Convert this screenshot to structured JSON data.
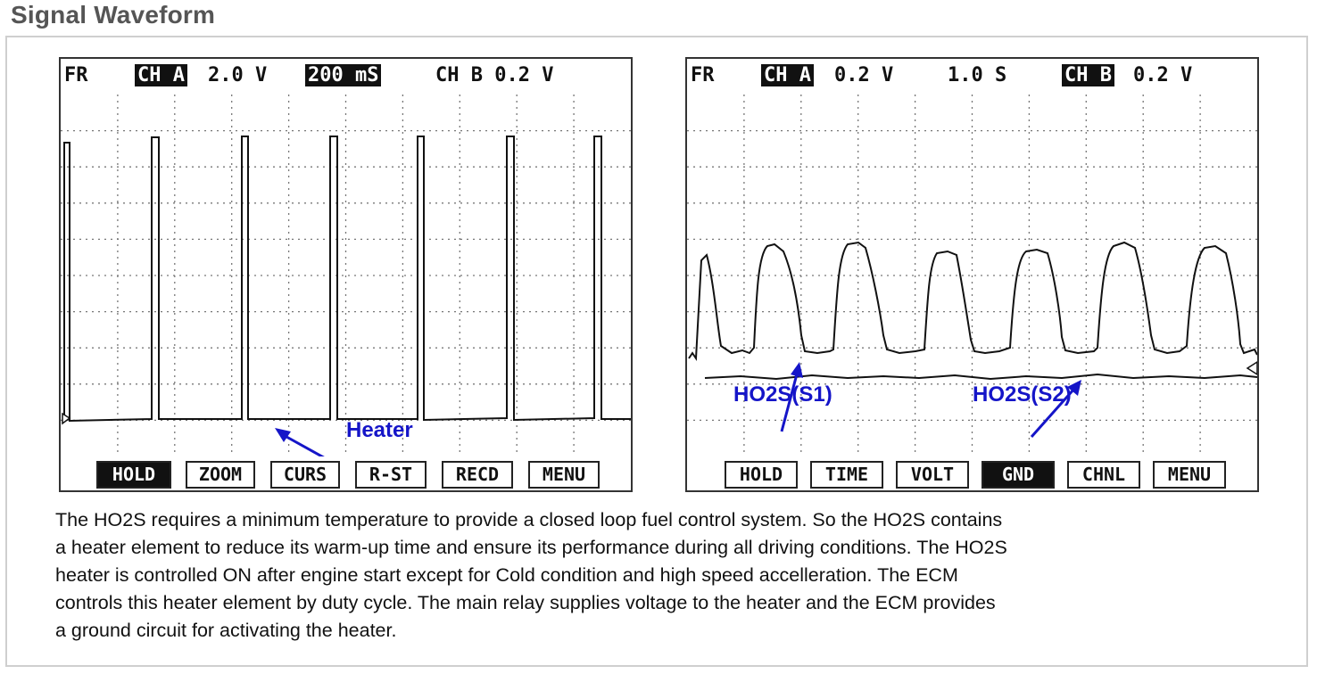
{
  "title": "Signal Waveform",
  "scope_a": {
    "header": {
      "mode": "FR",
      "ch_a": "CH A",
      "ch_a_scale": "2.0 V",
      "time_base": "200 mS",
      "ch_b": "CH B 0.2 V"
    },
    "annotation": "Heater",
    "buttons": [
      "HOLD",
      "ZOOM",
      "CURS",
      "R-ST",
      "RECD",
      "MENU"
    ],
    "active_button": "HOLD"
  },
  "scope_b": {
    "header": {
      "mode": "FR",
      "ch_a": "CH A",
      "ch_a_scale": "0.2 V",
      "time_base": "1.0 S",
      "ch_b": "CH B",
      "ch_b_scale": "0.2 V"
    },
    "annotations": [
      "HO2S(S1)",
      "HO2S(S2)"
    ],
    "buttons": [
      "HOLD",
      "TIME",
      "VOLT",
      "GND",
      "CHNL",
      "MENU"
    ],
    "active_button": "GND"
  },
  "description": [
    "The HO2S requires a minimum temperature to provide a closed loop fuel control system. So the HO2S contains",
    "a heater element to reduce its warm-up time and ensure its performance during all driving conditions.  The HO2S",
    "heater is controlled ON after engine start except for Cold condition and high speed accelleration. The ECM",
    "controls this heater element by duty cycle.  The main relay supplies voltage to the heater and the ECM provides",
    "a ground circuit for activating the heater."
  ],
  "colors": {
    "annotation": "#1515c8",
    "title": "#555555",
    "trace": "#111111"
  }
}
